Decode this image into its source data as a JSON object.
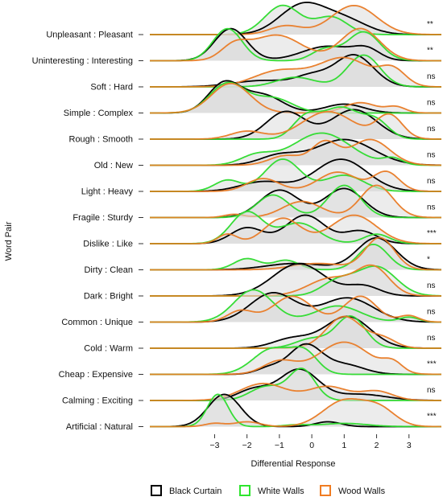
{
  "chart_data": {
    "type": "ridgeline-density",
    "xlabel": "Differential Response",
    "ylabel": "Word Pair",
    "x_ticks": [
      "−3",
      "−2",
      "−1",
      "0",
      "1",
      "2",
      "3"
    ],
    "x_tick_values": [
      -3,
      -2,
      -1,
      0,
      1,
      2,
      3
    ],
    "xlim": [
      -5,
      4
    ],
    "legend_position": "bottom",
    "series": [
      {
        "name": "Black Curtain",
        "color": "#000000"
      },
      {
        "name": "White Walls",
        "color": "#2ee52e"
      },
      {
        "name": "Wood Walls",
        "color": "#f07c22"
      }
    ],
    "rows": [
      {
        "label": "Unpleasant : Pleasant",
        "significance": "**",
        "peaks": [
          [
            [
              -0.3,
              0.7,
              1.0
            ],
            [
              1.0,
              0.7,
              0.5
            ]
          ],
          [
            [
              -0.9,
              0.55,
              1.0
            ],
            [
              0.6,
              0.5,
              0.6
            ]
          ],
          [
            [
              1.3,
              0.7,
              1.0
            ],
            [
              -0.8,
              0.5,
              0.3
            ]
          ]
        ]
      },
      {
        "label": "Uninteresting : Interesting",
        "significance": "**",
        "peaks": [
          [
            [
              -2.5,
              0.5,
              1.0
            ],
            [
              0.5,
              0.8,
              0.45
            ],
            [
              1.7,
              0.4,
              0.3
            ]
          ],
          [
            [
              -2.6,
              0.45,
              1.0
            ],
            [
              1.6,
              0.5,
              0.9
            ],
            [
              0.4,
              0.4,
              0.35
            ]
          ],
          [
            [
              -1.1,
              0.8,
              0.8
            ],
            [
              1.5,
              0.6,
              1.0
            ],
            [
              -2.4,
              0.4,
              0.4
            ]
          ]
        ]
      },
      {
        "label": "Soft : Hard",
        "significance": "ns",
        "peaks": [
          [
            [
              1.3,
              0.6,
              1.0
            ],
            [
              -1.5,
              0.9,
              0.2
            ],
            [
              0.0,
              0.5,
              0.3
            ]
          ],
          [
            [
              1.6,
              0.5,
              1.0
            ],
            [
              -0.5,
              0.6,
              0.3
            ]
          ],
          [
            [
              1.0,
              0.8,
              0.9
            ],
            [
              -1.0,
              0.8,
              0.5
            ],
            [
              2.5,
              0.4,
              0.5
            ]
          ]
        ]
      },
      {
        "label": "Simple : Complex",
        "significance": "ns",
        "peaks": [
          [
            [
              -2.7,
              0.5,
              1.0
            ],
            [
              -1.5,
              0.6,
              0.6
            ],
            [
              1.0,
              0.6,
              0.3
            ]
          ],
          [
            [
              -2.6,
              0.55,
              1.0
            ],
            [
              -1.2,
              0.6,
              0.5
            ]
          ],
          [
            [
              -2.5,
              0.6,
              1.0
            ],
            [
              1.5,
              0.5,
              0.35
            ],
            [
              2.6,
              0.3,
              0.2
            ]
          ]
        ]
      },
      {
        "label": "Rough : Smooth",
        "significance": "ns",
        "peaks": [
          [
            [
              -0.8,
              0.6,
              0.7
            ],
            [
              1.3,
              0.7,
              0.75
            ]
          ],
          [
            [
              -0.2,
              0.4,
              0.5
            ],
            [
              0.9,
              0.6,
              0.8
            ],
            [
              2.0,
              0.4,
              0.4
            ]
          ],
          [
            [
              0.5,
              0.8,
              0.7
            ],
            [
              2.4,
              0.4,
              0.6
            ],
            [
              -2.0,
              0.5,
              0.2
            ]
          ]
        ]
      },
      {
        "label": "Old : New",
        "significance": "ns",
        "peaks": [
          [
            [
              1.0,
              0.9,
              0.8
            ],
            [
              -1.0,
              0.6,
              0.3
            ]
          ],
          [
            [
              0.3,
              0.9,
              1.0
            ],
            [
              -1.7,
              0.5,
              0.3
            ],
            [
              2.5,
              0.3,
              0.2
            ]
          ],
          [
            [
              0.4,
              0.4,
              0.7
            ],
            [
              1.8,
              0.6,
              0.8
            ],
            [
              -0.8,
              0.5,
              0.3
            ]
          ]
        ]
      },
      {
        "label": "Light : Heavy",
        "significance": "ns",
        "peaks": [
          [
            [
              0.9,
              0.8,
              1.0
            ],
            [
              -1.5,
              0.7,
              0.3
            ]
          ],
          [
            [
              -0.9,
              0.55,
              1.0
            ],
            [
              -2.6,
              0.4,
              0.35
            ],
            [
              1.0,
              0.6,
              0.5
            ]
          ],
          [
            [
              -1.5,
              0.5,
              0.4
            ],
            [
              0.8,
              0.6,
              0.6
            ],
            [
              2.3,
              0.4,
              0.6
            ]
          ]
        ]
      },
      {
        "label": "Fragile : Sturdy",
        "significance": "ns",
        "peaks": [
          [
            [
              -1.0,
              0.6,
              0.85
            ],
            [
              1.0,
              0.6,
              0.9
            ]
          ],
          [
            [
              1.0,
              0.5,
              1.0
            ],
            [
              -1.2,
              0.5,
              0.7
            ]
          ],
          [
            [
              2.0,
              0.5,
              1.0
            ],
            [
              -0.3,
              0.6,
              0.5
            ],
            [
              -2.4,
              0.3,
              0.1
            ]
          ]
        ]
      },
      {
        "label": "Dislike : Like",
        "significance": "***",
        "peaks": [
          [
            [
              -0.2,
              0.6,
              0.9
            ],
            [
              -2.0,
              0.5,
              0.5
            ],
            [
              1.5,
              0.5,
              0.4
            ]
          ],
          [
            [
              -2.0,
              0.5,
              1.0
            ],
            [
              -0.4,
              0.6,
              0.65
            ],
            [
              2.0,
              0.4,
              0.3
            ]
          ],
          [
            [
              -0.9,
              0.55,
              0.8
            ],
            [
              1.3,
              0.7,
              0.9
            ],
            [
              -2.6,
              0.3,
              0.3
            ]
          ]
        ]
      },
      {
        "label": "Dirty : Clean",
        "significance": "*",
        "peaks": [
          [
            [
              2.0,
              0.6,
              1.0
            ],
            [
              -0.5,
              0.9,
              0.2
            ]
          ],
          [
            [
              1.9,
              0.45,
              0.8
            ],
            [
              -2.0,
              0.4,
              0.35
            ],
            [
              -0.8,
              0.4,
              0.3
            ]
          ],
          [
            [
              2.1,
              0.45,
              1.0
            ],
            [
              0.2,
              0.8,
              0.2
            ]
          ]
        ]
      },
      {
        "label": "Dark : Bright",
        "significance": "ns",
        "peaks": [
          [
            [
              -0.4,
              0.8,
              1.0
            ],
            [
              1.6,
              0.5,
              0.3
            ]
          ],
          [
            [
              2.0,
              0.6,
              0.9
            ],
            [
              0.8,
              0.5,
              0.45
            ]
          ],
          [
            [
              1.9,
              0.5,
              0.85
            ],
            [
              0.6,
              0.7,
              0.55
            ]
          ]
        ]
      },
      {
        "label": "Common : Unique",
        "significance": "ns",
        "peaks": [
          [
            [
              -1.2,
              0.7,
              0.9
            ],
            [
              1.1,
              0.8,
              0.75
            ]
          ],
          [
            [
              -1.8,
              0.6,
              1.0
            ],
            [
              0.8,
              0.7,
              0.5
            ],
            [
              3.0,
              0.3,
              0.15
            ]
          ],
          [
            [
              -0.6,
              0.6,
              0.8
            ],
            [
              1.5,
              0.5,
              0.8
            ],
            [
              -2.2,
              0.4,
              0.35
            ],
            [
              3.0,
              0.3,
              0.2
            ]
          ]
        ]
      },
      {
        "label": "Cold : Warm",
        "significance": "ns",
        "peaks": [
          [
            [
              1.1,
              0.7,
              1.0
            ],
            [
              -0.6,
              0.6,
              0.3
            ]
          ],
          [
            [
              1.2,
              0.45,
              1.0
            ],
            [
              0.0,
              0.5,
              0.3
            ]
          ],
          [
            [
              1.0,
              0.55,
              1.0
            ],
            [
              2.2,
              0.4,
              0.3
            ]
          ]
        ]
      },
      {
        "label": "Cheap : Expensive",
        "significance": "***",
        "peaks": [
          [
            [
              -0.2,
              0.5,
              0.9
            ],
            [
              1.0,
              0.6,
              0.3
            ],
            [
              -1.3,
              0.4,
              0.2
            ]
          ],
          [
            [
              -1.2,
              0.6,
              0.8
            ],
            [
              -0.2,
              0.4,
              0.6
            ]
          ],
          [
            [
              1.0,
              0.8,
              1.0
            ],
            [
              -1.0,
              0.5,
              0.4
            ],
            [
              2.5,
              0.3,
              0.3
            ]
          ]
        ]
      },
      {
        "label": "Calming : Exciting",
        "significance": "ns",
        "peaks": [
          [
            [
              -0.4,
              0.6,
              1.0
            ],
            [
              -1.8,
              0.5,
              0.35
            ],
            [
              1.5,
              0.8,
              0.2
            ]
          ],
          [
            [
              -0.3,
              0.4,
              1.0
            ],
            [
              -1.4,
              0.5,
              0.45
            ]
          ],
          [
            [
              -1.5,
              0.7,
              0.55
            ],
            [
              0.5,
              0.6,
              0.45
            ],
            [
              2.0,
              0.5,
              0.3
            ]
          ]
        ]
      },
      {
        "label": "Artificial : Natural",
        "significance": "***",
        "peaks": [
          [
            [
              -2.7,
              0.5,
              1.0
            ],
            [
              0.5,
              0.4,
              0.15
            ]
          ],
          [
            [
              -2.9,
              0.32,
              1.0
            ],
            [
              1.0,
              0.7,
              0.1
            ],
            [
              -0.5,
              0.4,
              0.05
            ]
          ],
          [
            [
              1.0,
              0.65,
              0.8
            ],
            [
              2.1,
              0.5,
              0.5
            ],
            [
              -2.0,
              0.4,
              0.15
            ],
            [
              -3.0,
              0.3,
              0.1
            ]
          ]
        ]
      }
    ]
  }
}
